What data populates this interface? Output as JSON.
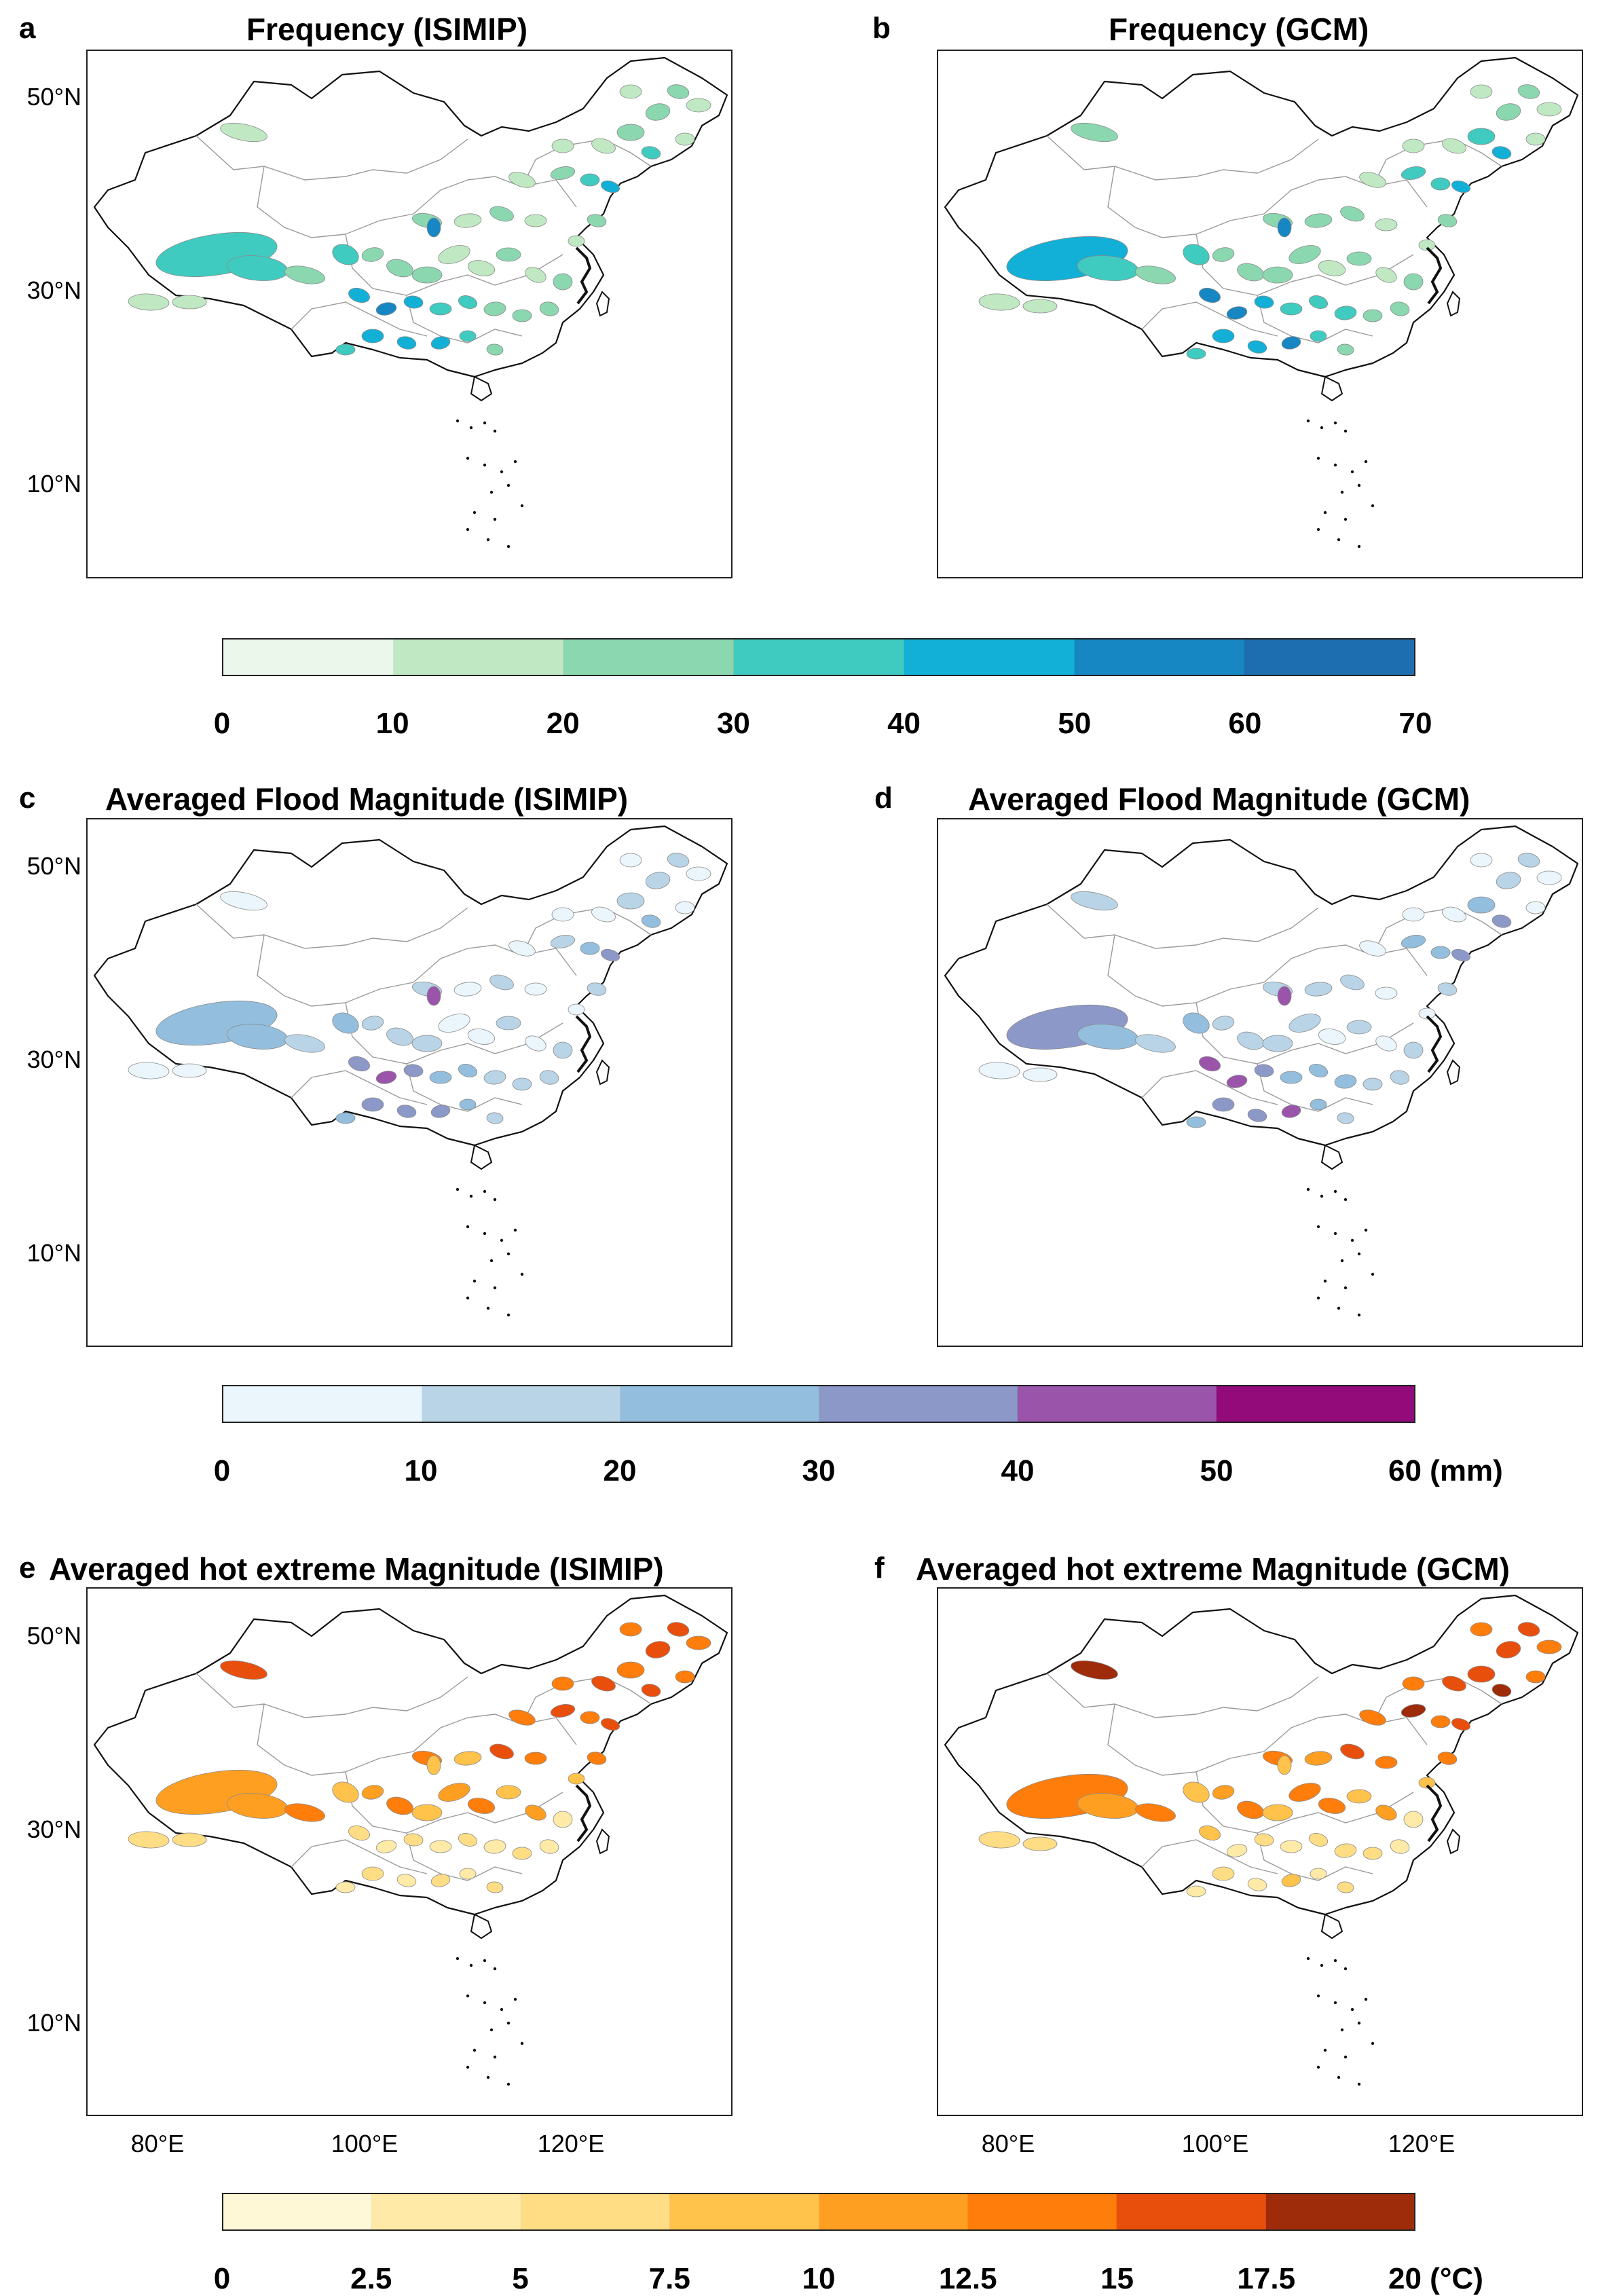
{
  "panels": [
    {
      "letter": "a",
      "title": "Frequency (ISIMIP)"
    },
    {
      "letter": "b",
      "title": "Frequency (GCM)"
    },
    {
      "letter": "c",
      "title": "Averaged Flood Magnitude (ISIMIP)"
    },
    {
      "letter": "d",
      "title": "Averaged Flood Magnitude (GCM)"
    },
    {
      "letter": "e",
      "title": "Averaged hot extreme Magnitude (ISIMIP)"
    },
    {
      "letter": "f",
      "title": "Averaged hot extreme Magnitude (GCM)"
    }
  ],
  "axes": {
    "lat_ticks": [
      "50°N",
      "30°N",
      "10°N"
    ],
    "lon_ticks": [
      "80°E",
      "100°E",
      "120°E"
    ]
  },
  "colorbars": {
    "frequency": {
      "labels": [
        "0",
        "10",
        "20",
        "30",
        "40",
        "50",
        "60",
        "70"
      ],
      "colors": [
        "#eaf7ea",
        "#bfe8c3",
        "#8bd7b0",
        "#3fcbc0",
        "#12b0d6",
        "#1687c2",
        "#1d6eb0"
      ]
    },
    "flood": {
      "labels": [
        "0",
        "10",
        "20",
        "30",
        "40",
        "50",
        "60 (mm)"
      ],
      "colors": [
        "#eaf6fb",
        "#b9d4e6",
        "#93bedd",
        "#8b98c8",
        "#9a55ab",
        "#930a7a"
      ]
    },
    "hot": {
      "labels": [
        "0",
        "2.5",
        "5",
        "7.5",
        "10",
        "12.5",
        "15",
        "17.5",
        "20 (°C)"
      ],
      "colors": [
        "#fff8d6",
        "#ffeaa7",
        "#ffdd85",
        "#ffc24a",
        "#ff9f22",
        "#ff7d0b",
        "#e94f0c",
        "#9e2b0a"
      ]
    }
  }
}
